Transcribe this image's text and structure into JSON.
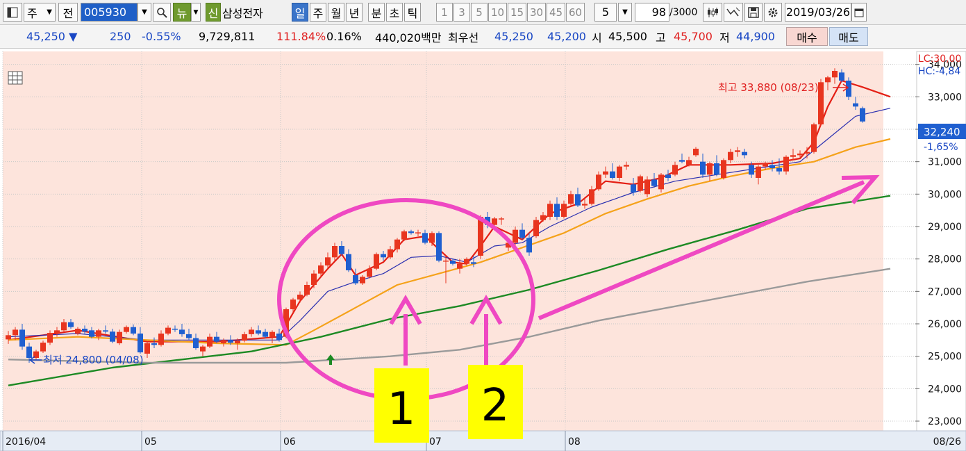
{
  "toolbar": {
    "period_select": "주",
    "prev_label": "전",
    "stock_code": "005930",
    "news_label": "뉴",
    "new_badge": "신",
    "stock_name": "삼성전자",
    "period_tabs": [
      {
        "label": "일",
        "active": true
      },
      {
        "label": "주",
        "active": false
      },
      {
        "label": "월",
        "active": false
      },
      {
        "label": "년",
        "active": false
      },
      {
        "label": "분",
        "active": false
      },
      {
        "label": "초",
        "active": false
      },
      {
        "label": "틱",
        "active": false
      }
    ],
    "interval_options": [
      "1",
      "3",
      "5",
      "10",
      "15",
      "30",
      "45",
      "60"
    ],
    "interval_value": "5",
    "count_value": "98",
    "count_max": "/3000",
    "date_value": "2019/03/26",
    "icons": [
      "window-icon",
      "search-icon",
      "candle-type-icon",
      "crosshair-icon",
      "save-icon",
      "gear-icon",
      "calendar-icon"
    ]
  },
  "quote": {
    "price": "45,250 ▼",
    "change": "250",
    "change_rate": "-0.55%",
    "volume": "9,729,811",
    "volume_ratio": "111.84%",
    "turnover": "0.16%",
    "amount": "440,020백만",
    "best_label": "최우선",
    "best_ask": "45,250",
    "best_bid": "45,200",
    "open_label": "시",
    "open": "45,500",
    "high_label": "고",
    "high": "45,700",
    "low_label": "저",
    "low": "44,900",
    "buy_label": "매수",
    "sell_label": "매도"
  },
  "colors": {
    "plot_bg": "#fde4dc",
    "up": "#e8351f",
    "down": "#1f5fd0",
    "ma5": "#e41e14",
    "ma10": "#2a2fb0",
    "ma20": "#f5a21a",
    "ma60": "#1d8a24",
    "ma120": "#9a9a9a",
    "annotation": "#ef48c2",
    "callout_bg": "#ffff00"
  },
  "chart_data": {
    "type": "candlestick",
    "ylim": [
      22700,
      34400
    ],
    "yticks": [
      23000,
      24000,
      25000,
      26000,
      27000,
      28000,
      29000,
      30000,
      31000,
      32000,
      33000,
      34000
    ],
    "ytick_labels": [
      "23,000",
      "24,000",
      "25,000",
      "26,000",
      "27,000",
      "28,000",
      "29,000",
      "30,000",
      "31,000",
      "32,000",
      "33,000",
      "34,000"
    ],
    "x_labels": [
      {
        "label": "2016/04",
        "index": 0
      },
      {
        "label": "05",
        "index": 20
      },
      {
        "label": "06",
        "index": 40
      },
      {
        "label": "07",
        "index": 61
      },
      {
        "label": "08",
        "index": 81
      }
    ],
    "right_x_label": "08/26",
    "top_right_labels": [
      "LC:30,00",
      "HC:-4,84"
    ],
    "current_price_label": "32,240",
    "current_rate_label": "-1,65%",
    "high_marker": {
      "label": "최고 33,880 (08/23)",
      "index": 95,
      "value": 33880
    },
    "low_marker": {
      "label": "최저 24,800 (04/08)",
      "index": 3,
      "value": 24800
    },
    "candles": [
      [
        25520,
        25780,
        25380,
        25650
      ],
      [
        25650,
        25900,
        25500,
        25820
      ],
      [
        25820,
        26000,
        25200,
        25300
      ],
      [
        25300,
        25420,
        24800,
        24950
      ],
      [
        24950,
        25200,
        24900,
        25150
      ],
      [
        25150,
        25480,
        25100,
        25420
      ],
      [
        25420,
        25800,
        25350,
        25720
      ],
      [
        25720,
        25900,
        25600,
        25800
      ],
      [
        25800,
        26150,
        25750,
        26050
      ],
      [
        26050,
        26150,
        25850,
        25900
      ],
      [
        25700,
        25900,
        25650,
        25850
      ],
      [
        25850,
        25950,
        25700,
        25760
      ],
      [
        25800,
        25900,
        25550,
        25600
      ],
      [
        25600,
        25850,
        25500,
        25800
      ],
      [
        25800,
        25950,
        25700,
        25760
      ],
      [
        25760,
        25850,
        25400,
        25450
      ],
      [
        25400,
        25820,
        25350,
        25750
      ],
      [
        25750,
        25950,
        25700,
        25900
      ],
      [
        25900,
        25980,
        25650,
        25700
      ],
      [
        25700,
        25900,
        25080,
        25120
      ],
      [
        25080,
        25450,
        24950,
        25400
      ],
      [
        25400,
        25580,
        25250,
        25350
      ],
      [
        25350,
        25800,
        25300,
        25700
      ],
      [
        25700,
        25950,
        25650,
        25880
      ],
      [
        25850,
        25950,
        25750,
        25820
      ],
      [
        25820,
        26000,
        25600,
        25680
      ],
      [
        25680,
        25850,
        25500,
        25560
      ],
      [
        25560,
        25700,
        25200,
        25250
      ],
      [
        25150,
        25350,
        25000,
        25300
      ],
      [
        25300,
        25700,
        25250,
        25600
      ],
      [
        25600,
        25750,
        25400,
        25450
      ],
      [
        25400,
        25550,
        25300,
        25500
      ],
      [
        25500,
        25650,
        25350,
        25420
      ],
      [
        25400,
        25550,
        25200,
        25480
      ],
      [
        25480,
        25750,
        25430,
        25680
      ],
      [
        25680,
        25900,
        25600,
        25820
      ],
      [
        25800,
        25950,
        25650,
        25700
      ],
      [
        25750,
        25850,
        25550,
        25600
      ],
      [
        25600,
        25800,
        25400,
        25750
      ],
      [
        25700,
        25850,
        25450,
        25500
      ],
      [
        25600,
        26500,
        25550,
        26450
      ],
      [
        26450,
        26800,
        26350,
        26750
      ],
      [
        26750,
        27000,
        26650,
        26900
      ],
      [
        26900,
        27300,
        26850,
        27200
      ],
      [
        27200,
        27650,
        27100,
        27550
      ],
      [
        27550,
        27900,
        27450,
        27800
      ],
      [
        27800,
        28200,
        27700,
        28050
      ],
      [
        28050,
        28500,
        27950,
        28400
      ],
      [
        28400,
        28550,
        28100,
        28150
      ],
      [
        28150,
        28300,
        27600,
        27650
      ],
      [
        27500,
        27700,
        27200,
        27250
      ],
      [
        27250,
        27500,
        27200,
        27450
      ],
      [
        27450,
        27800,
        27400,
        27700
      ],
      [
        27700,
        28200,
        27650,
        28150
      ],
      [
        28150,
        28250,
        27950,
        28050
      ],
      [
        28050,
        28400,
        28000,
        28300
      ],
      [
        28300,
        28650,
        28200,
        28600
      ],
      [
        28600,
        28900,
        28550,
        28850
      ],
      [
        28850,
        28900,
        28750,
        28800
      ],
      [
        28800,
        28900,
        28700,
        28820
      ],
      [
        28800,
        28900,
        28450,
        28500
      ],
      [
        28500,
        28850,
        28400,
        28800
      ],
      [
        28800,
        28850,
        27900,
        27950
      ],
      [
        27950,
        28100,
        27250,
        27950
      ],
      [
        27950,
        28000,
        27800,
        27850
      ],
      [
        27700,
        28000,
        27550,
        27850
      ],
      [
        27850,
        28050,
        27800,
        28000
      ],
      [
        27900,
        28100,
        27750,
        27850
      ],
      [
        28100,
        29350,
        28000,
        29300
      ],
      [
        29300,
        29450,
        28950,
        29050
      ],
      [
        29050,
        29300,
        28900,
        29250
      ],
      [
        29250,
        29300,
        29050,
        29250
      ],
      [
        28350,
        28600,
        28250,
        28500
      ],
      [
        28500,
        29000,
        28400,
        28900
      ],
      [
        28900,
        29100,
        28600,
        28650
      ],
      [
        28650,
        28800,
        28100,
        28200
      ],
      [
        28700,
        29300,
        28650,
        29200
      ],
      [
        29200,
        29450,
        29150,
        29350
      ],
      [
        29300,
        29800,
        29200,
        29700
      ],
      [
        29700,
        29900,
        29200,
        29300
      ],
      [
        29300,
        29800,
        29250,
        29700
      ],
      [
        29700,
        30100,
        29650,
        30000
      ],
      [
        30000,
        30200,
        29600,
        29650
      ],
      [
        29650,
        29850,
        29550,
        29700
      ],
      [
        29700,
        30250,
        29650,
        30150
      ],
      [
        30150,
        30700,
        30100,
        30600
      ],
      [
        30600,
        30850,
        30500,
        30700
      ],
      [
        30700,
        30950,
        30450,
        30500
      ],
      [
        30500,
        30900,
        30400,
        30850
      ],
      [
        30850,
        31000,
        30750,
        30900
      ],
      [
        30300,
        30500,
        29950,
        30050
      ],
      [
        30100,
        30600,
        30050,
        30550
      ],
      [
        30000,
        30550,
        29900,
        30450
      ],
      [
        30450,
        30650,
        30200,
        30250
      ],
      [
        30150,
        30650,
        30050,
        30600
      ],
      [
        30600,
        30750,
        30400,
        30500
      ],
      [
        30600,
        31000,
        30550,
        30900
      ],
      [
        31050,
        31250,
        30950,
        31000
      ],
      [
        30900,
        31150,
        30850,
        31050
      ],
      [
        31200,
        31450,
        31150,
        31400
      ],
      [
        31000,
        31250,
        30500,
        30600
      ],
      [
        30600,
        31000,
        30400,
        30950
      ],
      [
        30950,
        31200,
        30550,
        30600
      ],
      [
        30500,
        31100,
        30450,
        31050
      ],
      [
        31050,
        31400,
        30950,
        31300
      ],
      [
        31300,
        31450,
        31150,
        31350
      ],
      [
        31300,
        31400,
        31100,
        31200
      ],
      [
        30900,
        31000,
        30500,
        30600
      ],
      [
        30500,
        30900,
        30300,
        30850
      ],
      [
        30850,
        31000,
        30750,
        30950
      ],
      [
        30900,
        31050,
        30700,
        30800
      ],
      [
        30800,
        31100,
        30600,
        30700
      ],
      [
        30700,
        31200,
        30600,
        31150
      ],
      [
        31150,
        31400,
        31050,
        31200
      ],
      [
        31200,
        31350,
        31100,
        31250
      ],
      [
        31250,
        31450,
        31100,
        31300
      ],
      [
        31300,
        32200,
        31250,
        32150
      ],
      [
        32150,
        33550,
        32100,
        33450
      ],
      [
        33450,
        33650,
        33200,
        33600
      ],
      [
        33600,
        33880,
        33400,
        33800
      ],
      [
        33750,
        33850,
        33450,
        33500
      ],
      [
        33500,
        33600,
        32900,
        33000
      ],
      [
        32800,
        33000,
        32600,
        32700
      ],
      [
        32650,
        32700,
        32200,
        32240
      ]
    ],
    "moving_averages": [
      {
        "name": "MA5",
        "key": "ma5",
        "values": [
          [
            0,
            25500
          ],
          [
            10,
            25800
          ],
          [
            20,
            25450
          ],
          [
            30,
            25450
          ],
          [
            39,
            25600
          ],
          [
            42,
            26700
          ],
          [
            46,
            27700
          ],
          [
            48,
            28150
          ],
          [
            50,
            27500
          ],
          [
            54,
            27900
          ],
          [
            57,
            28600
          ],
          [
            60,
            28700
          ],
          [
            62,
            28300
          ],
          [
            64,
            27900
          ],
          [
            66,
            27850
          ],
          [
            68,
            28400
          ],
          [
            70,
            29000
          ],
          [
            74,
            28600
          ],
          [
            78,
            29400
          ],
          [
            82,
            29700
          ],
          [
            86,
            30400
          ],
          [
            90,
            30300
          ],
          [
            94,
            30500
          ],
          [
            98,
            30900
          ],
          [
            104,
            30900
          ],
          [
            110,
            30950
          ],
          [
            114,
            31100
          ],
          [
            116,
            31600
          ],
          [
            118,
            32700
          ],
          [
            120,
            33500
          ],
          [
            123,
            33300
          ],
          [
            127,
            33000
          ]
        ]
      },
      {
        "name": "MA10",
        "key": "ma10",
        "values": [
          [
            0,
            25600
          ],
          [
            10,
            25700
          ],
          [
            20,
            25500
          ],
          [
            30,
            25500
          ],
          [
            39,
            25500
          ],
          [
            42,
            26100
          ],
          [
            46,
            27000
          ],
          [
            50,
            27300
          ],
          [
            54,
            27550
          ],
          [
            58,
            28050
          ],
          [
            62,
            28100
          ],
          [
            66,
            27900
          ],
          [
            70,
            28400
          ],
          [
            74,
            28500
          ],
          [
            78,
            29000
          ],
          [
            84,
            29600
          ],
          [
            90,
            30050
          ],
          [
            96,
            30400
          ],
          [
            102,
            30600
          ],
          [
            108,
            30800
          ],
          [
            114,
            31000
          ],
          [
            118,
            31700
          ],
          [
            122,
            32400
          ],
          [
            127,
            32650
          ]
        ]
      },
      {
        "name": "MA20",
        "key": "ma20",
        "values": [
          [
            0,
            25500
          ],
          [
            10,
            25600
          ],
          [
            20,
            25500
          ],
          [
            30,
            25400
          ],
          [
            40,
            25350
          ],
          [
            44,
            25800
          ],
          [
            50,
            26500
          ],
          [
            56,
            27200
          ],
          [
            62,
            27550
          ],
          [
            68,
            27900
          ],
          [
            74,
            28350
          ],
          [
            80,
            28800
          ],
          [
            86,
            29400
          ],
          [
            92,
            29850
          ],
          [
            98,
            30250
          ],
          [
            104,
            30550
          ],
          [
            110,
            30800
          ],
          [
            116,
            31000
          ],
          [
            122,
            31450
          ],
          [
            127,
            31700
          ]
        ]
      },
      {
        "name": "MA60",
        "key": "ma60",
        "values": [
          [
            0,
            24100
          ],
          [
            15,
            24650
          ],
          [
            25,
            24900
          ],
          [
            35,
            25150
          ],
          [
            45,
            25600
          ],
          [
            55,
            26150
          ],
          [
            65,
            26550
          ],
          [
            75,
            27050
          ],
          [
            85,
            27650
          ],
          [
            95,
            28300
          ],
          [
            105,
            28900
          ],
          [
            115,
            29550
          ],
          [
            127,
            29950
          ]
        ]
      },
      {
        "name": "MA120",
        "key": "ma120",
        "values": [
          [
            0,
            24900
          ],
          [
            20,
            24800
          ],
          [
            40,
            24800
          ],
          [
            55,
            25000
          ],
          [
            65,
            25200
          ],
          [
            75,
            25600
          ],
          [
            85,
            26100
          ],
          [
            95,
            26500
          ],
          [
            105,
            26900
          ],
          [
            115,
            27300
          ],
          [
            127,
            27700
          ]
        ]
      }
    ],
    "annotations": {
      "callout_1": "1",
      "callout_2": "2"
    }
  }
}
